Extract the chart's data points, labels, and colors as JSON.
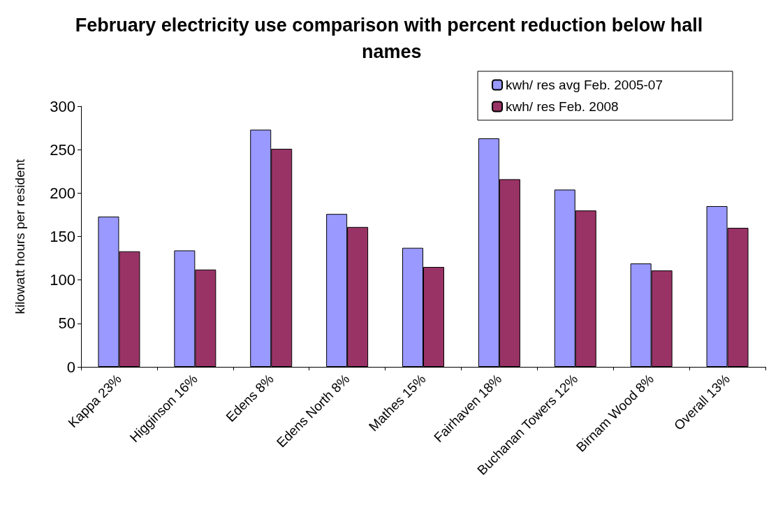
{
  "chart_data": {
    "type": "bar",
    "title": "February electricity use comparison with percent reduction below hall names",
    "ylabel": "kilowatt hours per resident",
    "categories": [
      "Kappa 23%",
      "Higginson 16%",
      "Edens 8%",
      "Edens North 8%",
      "Mathes 15%",
      "Fairhaven 18%",
      "Buchanan Towers 12%",
      "Birnam Wood 8%",
      "Overall 13%"
    ],
    "series": [
      {
        "name": "kwh/ res avg Feb. 2005-07",
        "color": "#9999ff",
        "values": [
          173,
          134,
          273,
          176,
          137,
          263,
          204,
          119,
          185
        ]
      },
      {
        "name": "kwh/ res Feb. 2008",
        "color": "#993366",
        "values": [
          133,
          112,
          251,
          161,
          115,
          216,
          180,
          111,
          160
        ]
      }
    ],
    "ylim": [
      0,
      300
    ],
    "yticks": [
      0,
      50,
      100,
      150,
      200,
      250,
      300
    ],
    "grid": false,
    "legend": "top right"
  }
}
